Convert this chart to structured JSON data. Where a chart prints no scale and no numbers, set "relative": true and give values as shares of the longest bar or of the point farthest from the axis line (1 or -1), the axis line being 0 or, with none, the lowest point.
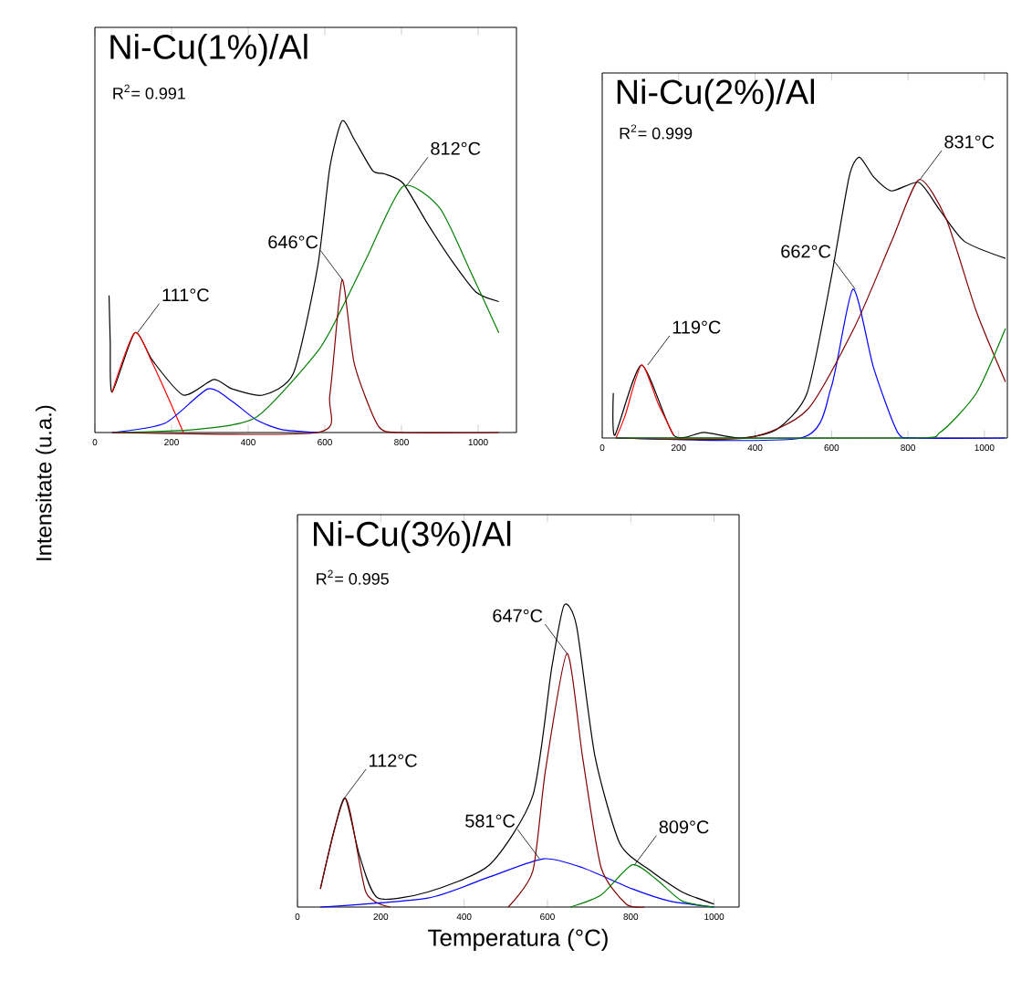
{
  "chart_data": [
    {
      "type": "line",
      "title": "Ni-Cu(1%)/Al",
      "relative": true,
      "tick_labels": "x",
      "marker": "none",
      "line_style": "solid",
      "xlim": [
        0,
        1100
      ],
      "xticks": [
        0,
        200,
        400,
        600,
        800,
        1000
      ],
      "annotations": [
        "R$^{2}$= 0.991",
        {
          "text": "111°C",
          "x": 111,
          "y": 0.32
        },
        {
          "text": "646°C",
          "x": 646,
          "y": 0.49
        },
        {
          "text": "812°C",
          "x": 812,
          "y": 0.79
        }
      ],
      "series": [
        {
          "color": "#000000",
          "x": [
            37,
            40,
            45,
            104,
            151,
            231,
            310,
            358,
            438,
            518,
            581,
            613,
            645,
            677,
            725,
            756,
            804,
            868,
            932,
            995,
            1054
          ],
          "values": [
            0.44,
            0.29,
            0.13,
            0.32,
            0.23,
            0.12,
            0.17,
            0.14,
            0.12,
            0.19,
            0.53,
            0.85,
            1.0,
            0.94,
            0.84,
            0.83,
            0.8,
            0.67,
            0.55,
            0.45,
            0.42
          ]
        },
        {
          "color": "#ff0000",
          "x": [
            45,
            104,
            151,
            199,
            231
          ],
          "values": [
            0.13,
            0.32,
            0.22,
            0.09,
            0.0
          ]
        },
        {
          "color": "#0000ff",
          "x": [
            45,
            183,
            295,
            358,
            422,
            486,
            581
          ],
          "values": [
            0.0,
            0.03,
            0.14,
            0.1,
            0.04,
            0.01,
            0.0
          ]
        },
        {
          "color": "#008000",
          "x": [
            48,
            263,
            422,
            581,
            645,
            709,
            804,
            900,
            979,
            1054
          ],
          "values": [
            0.0,
            0.01,
            0.05,
            0.26,
            0.4,
            0.56,
            0.79,
            0.72,
            0.52,
            0.32
          ]
        },
        {
          "color": "#800000",
          "x": [
            45,
            581,
            613,
            645,
            677,
            740,
            804,
            1054
          ],
          "values": [
            0.0,
            0.0,
            0.12,
            0.49,
            0.22,
            0.02,
            0.0,
            0.0
          ]
        }
      ]
    },
    {
      "type": "line",
      "title": "Ni-Cu(2%)/Al",
      "relative": true,
      "tick_labels": "x",
      "marker": "none",
      "line_style": "solid",
      "xlim": [
        0,
        1060
      ],
      "xticks": [
        0,
        200,
        400,
        600,
        800,
        1000
      ],
      "annotations": [
        "R$^{2}$= 0.999",
        {
          "text": "119°C",
          "x": 119,
          "y": 0.26
        },
        {
          "text": "662°C",
          "x": 662,
          "y": 0.53
        },
        {
          "text": "831°C",
          "x": 831,
          "y": 0.92
        }
      ],
      "series": [
        {
          "color": "#000000",
          "x": [
            29,
            33,
            103,
            187,
            266,
            361,
            456,
            536,
            599,
            646,
            673,
            710,
            757,
            829,
            884,
            948,
            1055
          ],
          "values": [
            0.16,
            0.01,
            0.26,
            0.01,
            0.02,
            0.0,
            0.03,
            0.16,
            0.57,
            0.93,
            1.0,
            0.93,
            0.88,
            0.91,
            0.81,
            0.7,
            0.64
          ]
        },
        {
          "color": "#ff0000",
          "x": [
            36,
            60,
            103,
            147,
            187
          ],
          "values": [
            0.0,
            0.08,
            0.26,
            0.12,
            0.01
          ]
        },
        {
          "color": "#0000ff",
          "x": [
            36,
            520,
            599,
            656,
            710,
            773,
            821,
            1055
          ],
          "values": [
            0.0,
            0.0,
            0.18,
            0.53,
            0.25,
            0.02,
            0.0,
            0.0
          ]
        },
        {
          "color": "#800000",
          "x": [
            36,
            377,
            536,
            662,
            757,
            829,
            900,
            979,
            1055
          ],
          "values": [
            0.0,
            0.0,
            0.1,
            0.4,
            0.7,
            0.92,
            0.78,
            0.45,
            0.2
          ]
        },
        {
          "color": "#008000",
          "x": [
            36,
            805,
            884,
            979,
            1055
          ],
          "values": [
            0.0,
            0.0,
            0.02,
            0.16,
            0.39
          ]
        }
      ]
    },
    {
      "type": "line",
      "title": "Ni-Cu(3%)/Al",
      "xlabel": "Temperatura (°C)",
      "ylabel": "Intensitate (u.a.)",
      "relative": true,
      "tick_labels": "x",
      "marker": "none",
      "line_style": "solid",
      "xlim": [
        0,
        1060
      ],
      "xticks": [
        0,
        200,
        400,
        600,
        800,
        1000
      ],
      "annotations": [
        "R$^{2}$= 0.995",
        {
          "text": "112°C",
          "x": 112,
          "y": 0.36
        },
        {
          "text": "581°C",
          "x": 581,
          "y": 0.16
        },
        {
          "text": "647°C",
          "x": 647,
          "y": 0.84
        },
        {
          "text": "809°C",
          "x": 809,
          "y": 0.14
        }
      ],
      "series": [
        {
          "color": "#000000",
          "x": [
            55,
            89,
            115,
            149,
            193,
            313,
            461,
            565,
            610,
            640,
            670,
            714,
            774,
            848,
            923,
            1000
          ],
          "values": [
            0.06,
            0.26,
            0.36,
            0.17,
            0.03,
            0.05,
            0.14,
            0.37,
            0.79,
            1.0,
            0.93,
            0.5,
            0.21,
            0.12,
            0.05,
            0.01
          ]
        },
        {
          "color": "#800000",
          "x": [
            55,
            115,
            164,
            223
          ],
          "values": [
            0.06,
            0.36,
            0.05,
            0.0
          ]
        },
        {
          "color": "#0000ff",
          "x": [
            55,
            313,
            461,
            591,
            685,
            804,
            893,
            1000
          ],
          "values": [
            0.0,
            0.03,
            0.1,
            0.16,
            0.13,
            0.06,
            0.02,
            0.0
          ]
        },
        {
          "color": "#800000",
          "x": [
            506,
            565,
            595,
            647,
            685,
            729,
            789,
            833
          ],
          "values": [
            0.0,
            0.12,
            0.45,
            0.84,
            0.49,
            0.13,
            0.01,
            0.0
          ]
        },
        {
          "color": "#008000",
          "x": [
            655,
            729,
            804,
            863,
            923,
            1000
          ],
          "values": [
            0.0,
            0.04,
            0.14,
            0.09,
            0.02,
            0.0
          ]
        }
      ]
    }
  ]
}
